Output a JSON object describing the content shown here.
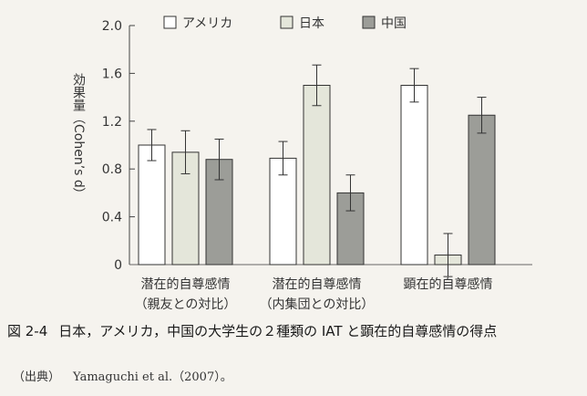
{
  "chart_data": {
    "type": "bar",
    "ylabel": "効果量（Cohen’s d）",
    "ylim": [
      0,
      2.0
    ],
    "yticks": [
      "0",
      "0.4",
      "0.8",
      "1.2",
      "1.6",
      "2.0"
    ],
    "categories": [
      [
        "潜在的自尊感情",
        "（親友との対比）"
      ],
      [
        "潜在的自尊感情",
        "（内集団との対比）"
      ],
      [
        "顕在的自尊感情"
      ]
    ],
    "legend_position": "top",
    "series": [
      {
        "name": "アメリカ",
        "color": "#ffffff",
        "values": [
          1.0,
          0.89,
          1.5
        ],
        "errors": [
          0.13,
          0.14,
          0.14
        ]
      },
      {
        "name": "日本",
        "color": "#e4e6da",
        "values": [
          0.94,
          1.5,
          0.08
        ],
        "errors": [
          0.18,
          0.17,
          0.18
        ]
      },
      {
        "name": "中国",
        "color": "#9c9d98",
        "values": [
          0.88,
          0.6,
          1.25
        ],
        "errors": [
          0.17,
          0.15,
          0.15
        ]
      }
    ],
    "grid": false
  },
  "caption": {
    "number": "図 2-4",
    "text": "日本，アメリカ，中国の大学生の２種類の IAT と顕在的自尊感情の得点"
  },
  "source": {
    "label": "（出典）",
    "text": "Yamaguchi et al.（2007）。"
  }
}
